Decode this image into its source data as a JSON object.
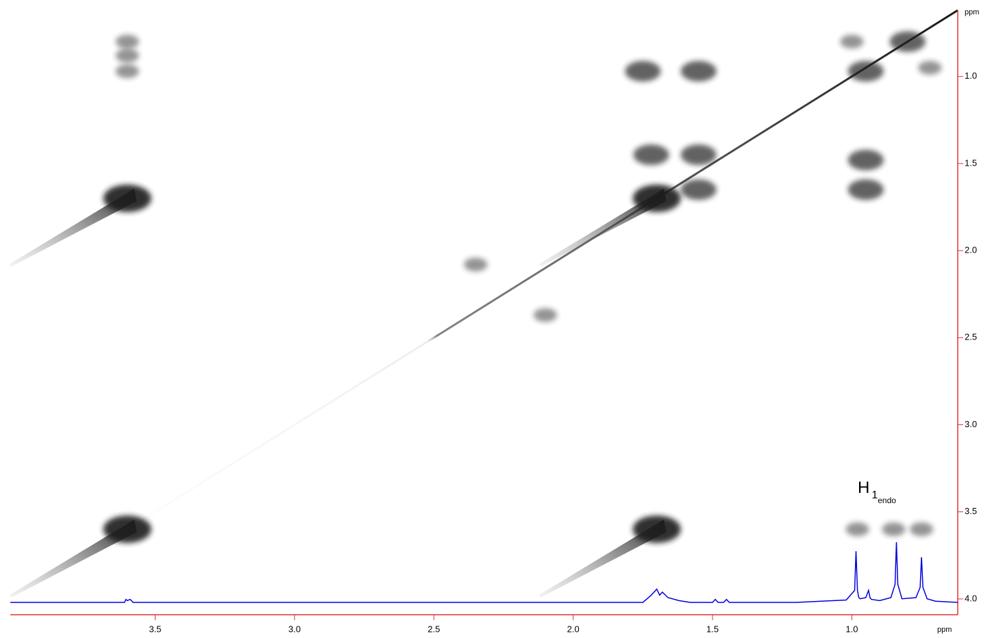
{
  "chart_data": {
    "type": "nmr2d",
    "xlabel": "ppm",
    "ylabel": "ppm",
    "xlim": [
      4.02,
      0.62
    ],
    "ylim": [
      0.62,
      4.02
    ],
    "xticks": [
      3.5,
      {
        "value": 3,
        "label": "3.0"
      },
      2.5,
      {
        "value": 2,
        "label": "2.0"
      },
      1.5,
      {
        "value": 1,
        "label": "1.0"
      }
    ],
    "yticks": [
      {
        "value": 1,
        "label": "1.0"
      },
      1.5,
      {
        "value": 2,
        "label": "2.0"
      },
      2.5,
      {
        "value": 3,
        "label": "3.0"
      },
      3.5,
      {
        "value": 4,
        "label": "4.0"
      }
    ],
    "annotation": {
      "text": "H",
      "sub": "1",
      "subsub": "endo"
    },
    "peak_color": "#1a1a1a",
    "peaks": [
      {
        "x": 3.6,
        "y": 0.8,
        "intensity": 1
      },
      {
        "x": 3.6,
        "y": 0.88,
        "intensity": 1
      },
      {
        "x": 3.6,
        "y": 0.97,
        "intensity": 1
      },
      {
        "x": 3.6,
        "y": 1.7,
        "intensity": 3
      },
      {
        "x": 3.6,
        "y": 3.6,
        "intensity": 3
      },
      {
        "x": 1.7,
        "y": 3.6,
        "intensity": 3
      },
      {
        "x": 1.7,
        "y": 1.7,
        "intensity": 3
      },
      {
        "x": 1.75,
        "y": 0.97,
        "intensity": 2
      },
      {
        "x": 1.55,
        "y": 0.97,
        "intensity": 2
      },
      {
        "x": 1.72,
        "y": 1.45,
        "intensity": 2
      },
      {
        "x": 1.55,
        "y": 1.45,
        "intensity": 2
      },
      {
        "x": 1.55,
        "y": 1.65,
        "intensity": 2
      },
      {
        "x": 0.95,
        "y": 1.48,
        "intensity": 2
      },
      {
        "x": 0.95,
        "y": 1.65,
        "intensity": 2
      },
      {
        "x": 0.95,
        "y": 0.97,
        "intensity": 2
      },
      {
        "x": 0.8,
        "y": 0.8,
        "intensity": 2
      },
      {
        "x": 1.0,
        "y": 0.8,
        "intensity": 1
      },
      {
        "x": 0.72,
        "y": 0.95,
        "intensity": 1
      },
      {
        "x": 2.1,
        "y": 2.37,
        "intensity": 1
      },
      {
        "x": 2.35,
        "y": 2.08,
        "intensity": 1
      },
      {
        "x": 0.98,
        "y": 3.6,
        "intensity": 1
      },
      {
        "x": 0.85,
        "y": 3.6,
        "intensity": 1
      },
      {
        "x": 0.75,
        "y": 3.6,
        "intensity": 1
      }
    ],
    "trace": {
      "color": "#0000e0",
      "ylim": [
        0,
        100
      ],
      "x": [
        4.02,
        3.61,
        3.605,
        3.6,
        3.59,
        3.585,
        3.58,
        1.75,
        1.72,
        1.7,
        1.69,
        1.68,
        1.66,
        1.62,
        1.58,
        1.5,
        1.49,
        1.48,
        1.46,
        1.45,
        1.44,
        1.2,
        1.02,
        0.99,
        0.985,
        0.98,
        0.975,
        0.97,
        0.95,
        0.94,
        0.935,
        0.93,
        0.9,
        0.86,
        0.845,
        0.84,
        0.835,
        0.82,
        0.77,
        0.755,
        0.75,
        0.745,
        0.73,
        0.7,
        0.62
      ],
      "values": [
        0,
        0,
        5,
        3,
        5,
        3,
        0,
        0,
        12,
        22,
        12,
        17,
        8,
        3,
        0,
        0,
        5,
        0,
        0,
        5,
        0,
        0,
        4,
        20,
        85,
        20,
        8,
        6,
        8,
        20,
        8,
        5,
        3,
        8,
        30,
        100,
        30,
        6,
        8,
        25,
        75,
        25,
        6,
        2,
        0
      ]
    }
  }
}
